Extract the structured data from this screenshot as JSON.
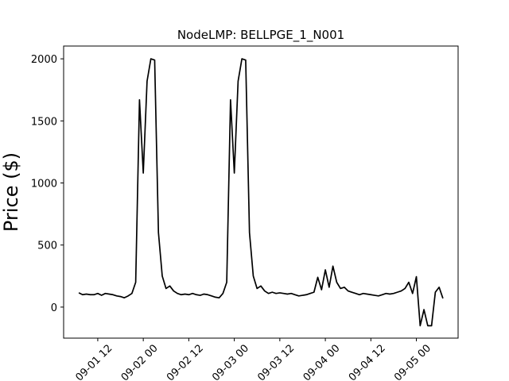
{
  "chart_data": {
    "type": "line",
    "title": "NodeLMP: BELLPGE_1_N001",
    "y_label": "Price ($)",
    "x": [
      "09-01 07",
      "09-01 08",
      "09-01 09",
      "09-01 10",
      "09-01 11",
      "09-01 12",
      "09-01 13",
      "09-01 14",
      "09-01 15",
      "09-01 16",
      "09-01 17",
      "09-01 18",
      "09-01 19",
      "09-01 20",
      "09-01 21",
      "09-01 22",
      "09-01 23",
      "09-02 00",
      "09-02 01",
      "09-02 02",
      "09-02 03",
      "09-02 04",
      "09-02 05",
      "09-02 06",
      "09-02 07",
      "09-02 08",
      "09-02 09",
      "09-02 10",
      "09-02 11",
      "09-02 12",
      "09-02 13",
      "09-02 14",
      "09-02 15",
      "09-02 16",
      "09-02 17",
      "09-02 18",
      "09-02 19",
      "09-02 20",
      "09-02 21",
      "09-02 22",
      "09-02 23",
      "09-03 00",
      "09-03 01",
      "09-03 02",
      "09-03 03",
      "09-03 04",
      "09-03 05",
      "09-03 06",
      "09-03 07",
      "09-03 08",
      "09-03 09",
      "09-03 10",
      "09-03 11",
      "09-03 12",
      "09-03 13",
      "09-03 14",
      "09-03 15",
      "09-03 16",
      "09-03 17",
      "09-03 18",
      "09-03 19",
      "09-03 20",
      "09-03 21",
      "09-03 22",
      "09-03 23",
      "09-04 00",
      "09-04 01",
      "09-04 02",
      "09-04 03",
      "09-04 04",
      "09-04 05",
      "09-04 06",
      "09-04 07",
      "09-04 08",
      "09-04 09",
      "09-04 10",
      "09-04 11",
      "09-04 12",
      "09-04 13",
      "09-04 14",
      "09-04 15",
      "09-04 16",
      "09-04 17",
      "09-04 18",
      "09-04 19",
      "09-04 20",
      "09-04 21",
      "09-04 22",
      "09-04 23",
      "09-05 00",
      "09-05 01",
      "09-05 02",
      "09-05 03",
      "09-05 04",
      "09-05 05",
      "09-05 06",
      "09-05 07"
    ],
    "series": [
      {
        "color": "#000000",
        "values": [
          115,
          100,
          105,
          100,
          100,
          110,
          95,
          110,
          105,
          100,
          90,
          85,
          75,
          90,
          110,
          200,
          1670,
          1080,
          1820,
          2000,
          1990,
          600,
          250,
          150,
          170,
          130,
          110,
          100,
          105,
          100,
          110,
          100,
          95,
          105,
          100,
          90,
          80,
          75,
          110,
          200,
          1670,
          1080,
          1820,
          2000,
          1990,
          600,
          250,
          150,
          170,
          130,
          110,
          120,
          110,
          115,
          110,
          105,
          110,
          100,
          90,
          95,
          100,
          110,
          120,
          240,
          140,
          300,
          160,
          330,
          200,
          150,
          160,
          130,
          120,
          110,
          100,
          110,
          105,
          100,
          95,
          90,
          100,
          110,
          105,
          110,
          120,
          130,
          150,
          200,
          110,
          245,
          -150,
          -20,
          -150,
          -150,
          120,
          160,
          70
        ]
      }
    ],
    "xlim": [
      "09-01 03",
      "09-05 11"
    ],
    "xticks": [
      "09-01 12",
      "09-02 00",
      "09-02 12",
      "09-03 00",
      "09-03 12",
      "09-04 00",
      "09-04 12",
      "09-05 00"
    ],
    "ylim": [
      -250,
      2103
    ],
    "yticks": [
      0,
      500,
      1000,
      1500,
      2000
    ]
  }
}
